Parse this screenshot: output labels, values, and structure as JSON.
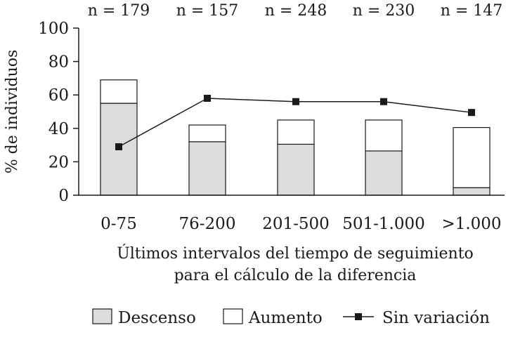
{
  "chart_data": {
    "type": "bar",
    "stacked": true,
    "categories": [
      "0-75",
      "76-200",
      "201-500",
      "501-1.000",
      ">1.000"
    ],
    "n_labels": [
      "n = 179",
      "n = 157",
      "n = 248",
      "n = 230",
      "n = 147"
    ],
    "series": [
      {
        "name": "Descenso",
        "kind": "bar",
        "color": "#dcdcdc",
        "values": [
          55,
          32,
          30.5,
          26.5,
          4.5
        ]
      },
      {
        "name": "Aumento",
        "kind": "bar",
        "color": "#ffffff",
        "values": [
          14,
          10,
          14.5,
          18.5,
          36
        ]
      },
      {
        "name": "Sin variación",
        "kind": "line",
        "marker": "square",
        "color": "#1a1a1a",
        "values": [
          29,
          58,
          56,
          56,
          49.5
        ]
      }
    ],
    "xlabel_lines": [
      "Últimos intervalos del tiempo de seguimiento",
      "para el cálculo de la diferencia"
    ],
    "ylabel": "% de individuos",
    "ylim": [
      0,
      100
    ],
    "yticks": [
      0,
      20,
      40,
      60,
      80,
      100
    ],
    "grid": false,
    "legend_position": "bottom"
  }
}
